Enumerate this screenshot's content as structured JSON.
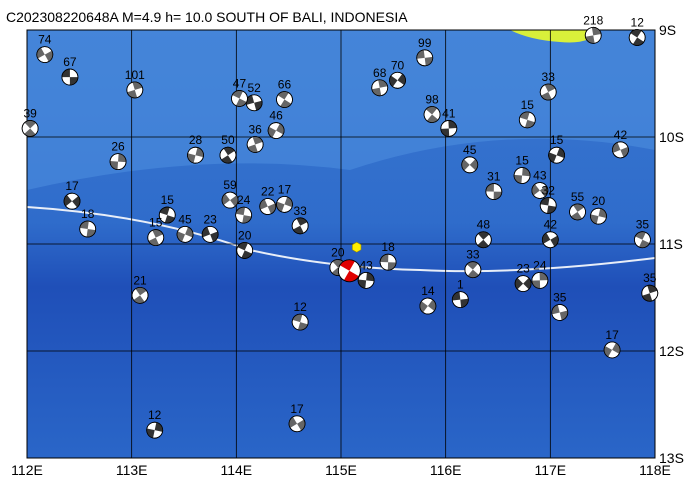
{
  "chart_data": {
    "type": "map",
    "title": "C202308220648A M=4.9 h= 10.0 SOUTH OF BALI, INDONESIA",
    "xlim": [
      112,
      118
    ],
    "ylim": [
      -13,
      -9
    ],
    "xticks": [
      {
        "value": 112,
        "label": "112E"
      },
      {
        "value": 113,
        "label": "113E"
      },
      {
        "value": 114,
        "label": "114E"
      },
      {
        "value": 115,
        "label": "115E"
      },
      {
        "value": 116,
        "label": "116E"
      },
      {
        "value": 117,
        "label": "117E"
      },
      {
        "value": 118,
        "label": "118E"
      }
    ],
    "yticks": [
      {
        "value": -9,
        "label": "9S"
      },
      {
        "value": -10,
        "label": "10S"
      },
      {
        "value": -11,
        "label": "11S"
      },
      {
        "value": -12,
        "label": "12S"
      },
      {
        "value": -13,
        "label": "13S"
      }
    ],
    "grid": true,
    "main_event": {
      "lon": 115.08,
      "lat": -11.25,
      "color": "#e00000"
    },
    "epicenter": {
      "lon": 115.15,
      "lat": -11.03,
      "color": "#ffee00"
    },
    "events": [
      {
        "lon": 112.41,
        "lat": -9.44,
        "depth": "67"
      },
      {
        "lon": 112.03,
        "lat": -9.92,
        "depth": "39"
      },
      {
        "lon": 112.87,
        "lat": -10.23,
        "depth": "26"
      },
      {
        "lon": 112.43,
        "lat": -10.6,
        "depth": "17"
      },
      {
        "lon": 112.58,
        "lat": -10.86,
        "depth": "18"
      },
      {
        "lon": 113.08,
        "lat": -11.48,
        "depth": "21"
      },
      {
        "lon": 113.22,
        "lat": -12.74,
        "depth": "12"
      },
      {
        "lon": 114.58,
        "lat": -12.68,
        "depth": "17"
      },
      {
        "lon": 114.61,
        "lat": -11.73,
        "depth": "12"
      },
      {
        "lon": 114.61,
        "lat": -10.83,
        "depth": "33"
      },
      {
        "lon": 114.46,
        "lat": -10.63,
        "depth": "17"
      },
      {
        "lon": 114.3,
        "lat": -10.65,
        "depth": "22"
      },
      {
        "lon": 114.08,
        "lat": -11.06,
        "depth": "20"
      },
      {
        "lon": 114.18,
        "lat": -10.07,
        "depth": "36"
      },
      {
        "lon": 114.38,
        "lat": -9.94,
        "depth": "46"
      },
      {
        "lon": 114.17,
        "lat": -9.68,
        "depth": "52"
      },
      {
        "lon": 114.46,
        "lat": -9.65,
        "depth": "66"
      },
      {
        "lon": 115.37,
        "lat": -9.54,
        "depth": "68"
      },
      {
        "lon": 115.54,
        "lat": -9.47,
        "depth": "70"
      },
      {
        "lon": 115.8,
        "lat": -9.26,
        "depth": "99"
      },
      {
        "lon": 115.87,
        "lat": -9.79,
        "depth": "98"
      },
      {
        "lon": 116.03,
        "lat": -9.92,
        "depth": "41"
      },
      {
        "lon": 116.23,
        "lat": -10.26,
        "depth": "45"
      },
      {
        "lon": 116.46,
        "lat": -10.51,
        "depth": "31"
      },
      {
        "lon": 116.36,
        "lat": -10.96,
        "depth": "48"
      },
      {
        "lon": 116.73,
        "lat": -10.36,
        "depth": "15"
      },
      {
        "lon": 116.9,
        "lat": -10.5,
        "depth": "43"
      },
      {
        "lon": 116.98,
        "lat": -10.64,
        "depth": "32"
      },
      {
        "lon": 117.26,
        "lat": -10.7,
        "depth": "55"
      },
      {
        "lon": 117.46,
        "lat": -10.74,
        "depth": "20"
      },
      {
        "lon": 117.0,
        "lat": -10.96,
        "depth": "42"
      },
      {
        "lon": 116.78,
        "lat": -9.84,
        "depth": "15"
      },
      {
        "lon": 116.98,
        "lat": -9.58,
        "depth": "33"
      },
      {
        "lon": 117.06,
        "lat": -10.17,
        "depth": "15"
      },
      {
        "lon": 117.67,
        "lat": -10.12,
        "depth": "42"
      },
      {
        "lon": 117.88,
        "lat": -10.96,
        "depth": "35"
      },
      {
        "lon": 117.95,
        "lat": -11.46,
        "depth": "35"
      },
      {
        "lon": 117.59,
        "lat": -11.99,
        "depth": "17"
      },
      {
        "lon": 117.09,
        "lat": -11.64,
        "depth": "35"
      },
      {
        "lon": 117.83,
        "lat": -9.07,
        "depth": "12"
      },
      {
        "lon": 117.41,
        "lat": -9.05,
        "depth": "218"
      },
      {
        "lon": 115.83,
        "lat": -11.58,
        "depth": "14"
      },
      {
        "lon": 116.14,
        "lat": -11.52,
        "depth": "1"
      },
      {
        "lon": 116.26,
        "lat": -11.24,
        "depth": "33"
      },
      {
        "lon": 116.9,
        "lat": -11.34,
        "depth": "24"
      },
      {
        "lon": 116.74,
        "lat": -11.37,
        "depth": "23"
      },
      {
        "lon": 115.45,
        "lat": -11.17,
        "depth": "18"
      },
      {
        "lon": 114.97,
        "lat": -11.22,
        "depth": "20"
      },
      {
        "lon": 115.24,
        "lat": -11.34,
        "depth": "43"
      },
      {
        "lon": 113.94,
        "lat": -10.59,
        "depth": "59"
      },
      {
        "lon": 114.07,
        "lat": -10.73,
        "depth": "24"
      },
      {
        "lon": 113.92,
        "lat": -10.17,
        "depth": "50"
      },
      {
        "lon": 113.61,
        "lat": -10.17,
        "depth": "28"
      },
      {
        "lon": 112.17,
        "lat": -9.23,
        "depth": "74"
      },
      {
        "lon": 113.34,
        "lat": -10.73,
        "depth": "15"
      },
      {
        "lon": 113.23,
        "lat": -10.94,
        "depth": "15"
      },
      {
        "lon": 113.51,
        "lat": -10.91,
        "depth": "45"
      },
      {
        "lon": 113.75,
        "lat": -10.91,
        "depth": "23"
      },
      {
        "lon": 114.03,
        "lat": -9.64,
        "depth": "47"
      },
      {
        "lon": 113.03,
        "lat": -9.56,
        "depth": "101"
      }
    ]
  }
}
